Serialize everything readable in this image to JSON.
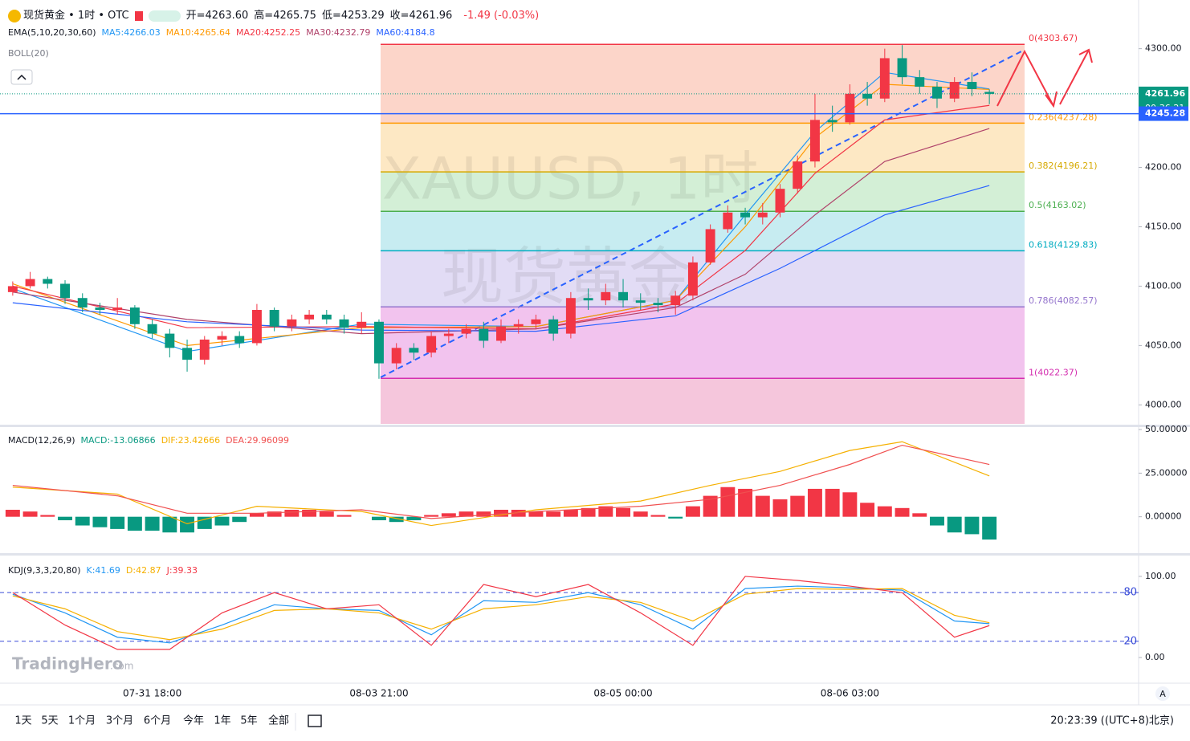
{
  "header": {
    "title": "现货黄金 • 1时 • OTC",
    "ohlc": [
      "开=4263.60",
      "高=4265.75",
      "低=4253.29",
      "收=4261.96"
    ],
    "change": "-1.49 (-0.03%)",
    "boll": "BOLL(20)",
    "logo": "TradingHero",
    "logo_suffix": ".com",
    "watermark_1": "XAUUSD, 1时",
    "watermark_2": "现货黄金"
  },
  "toolbar": {
    "ranges": [
      "1天",
      "5天",
      "1个月",
      "3个月",
      "6个月",
      "今年",
      "1年",
      "5年",
      "全部"
    ],
    "clock": "20:23:39 ((UTC+8)北京)",
    "auto": "A"
  },
  "chart_data": [
    {
      "type": "candlestick",
      "legend_title": "EMA(5,10,20,30,60)",
      "up_color": "#f23645",
      "down_color": "#089981",
      "categories": [
        null,
        null,
        null,
        null,
        null,
        null,
        null,
        null,
        "07-31 18:00",
        null,
        null,
        null,
        null,
        null,
        null,
        null,
        null,
        null,
        null,
        null,
        null,
        "08-03 21:00",
        null,
        null,
        null,
        null,
        null,
        null,
        null,
        null,
        null,
        null,
        null,
        null,
        null,
        "08-05 00:00",
        null,
        null,
        null,
        null,
        null,
        null,
        null,
        null,
        null,
        null,
        null,
        null,
        "08-06 03:00",
        null,
        null,
        null,
        null,
        null,
        null,
        null,
        null
      ],
      "open": [
        4095,
        4100,
        4106,
        4102,
        4090,
        4082,
        4080,
        4082,
        4068,
        4060,
        4048,
        4038,
        4055,
        4058,
        4052,
        4080,
        4066,
        4072,
        4076,
        4072,
        4065,
        4070,
        4035,
        4048,
        4044,
        4058,
        4060,
        4064,
        4054,
        4066,
        4068,
        4072,
        4060,
        4090,
        4088,
        4095,
        4088,
        4086,
        4084,
        4092,
        4120,
        4148,
        4162,
        4158,
        4162,
        4182,
        4205,
        4240,
        4238,
        4262,
        4258,
        4292,
        4276,
        4268,
        4258,
        4272,
        4263.6
      ],
      "high": [
        4104,
        4112,
        4108,
        4105,
        4094,
        4086,
        4090,
        4084,
        4072,
        4064,
        4055,
        4058,
        4062,
        4062,
        4085,
        4082,
        4076,
        4080,
        4080,
        4076,
        4078,
        4072,
        4052,
        4052,
        4062,
        4064,
        4068,
        4070,
        4072,
        4072,
        4076,
        4075,
        4095,
        4098,
        4102,
        4106,
        4094,
        4090,
        4096,
        4125,
        4152,
        4168,
        4166,
        4170,
        4186,
        4210,
        4262,
        4252,
        4270,
        4272,
        4300,
        4303,
        4282,
        4272,
        4276,
        4280,
        4265.75
      ],
      "low": [
        4092,
        4098,
        4098,
        4085,
        4078,
        4076,
        4076,
        4064,
        4056,
        4040,
        4028,
        4034,
        4050,
        4048,
        4050,
        4062,
        4062,
        4068,
        4068,
        4060,
        4060,
        4022,
        4030,
        4038,
        4040,
        4052,
        4056,
        4048,
        4052,
        4060,
        4064,
        4054,
        4056,
        4080,
        4084,
        4082,
        4080,
        4078,
        4076,
        4088,
        4118,
        4145,
        4152,
        4152,
        4158,
        4178,
        4200,
        4230,
        4236,
        4252,
        4255,
        4270,
        4262,
        4250,
        4255,
        4260,
        4253.29
      ],
      "close": [
        4100,
        4106,
        4102,
        4090,
        4082,
        4080,
        4082,
        4068,
        4060,
        4048,
        4038,
        4055,
        4058,
        4052,
        4080,
        4066,
        4072,
        4076,
        4072,
        4065,
        4070,
        4035,
        4048,
        4044,
        4058,
        4060,
        4064,
        4054,
        4066,
        4068,
        4072,
        4060,
        4090,
        4088,
        4095,
        4088,
        4086,
        4084,
        4092,
        4120,
        4148,
        4162,
        4158,
        4162,
        4182,
        4205,
        4240,
        4238,
        4262,
        4258,
        4292,
        4276,
        4268,
        4258,
        4272,
        4266,
        4261.96
      ],
      "series": [
        {
          "name": "MA5:4266.03",
          "color": "#2196f3",
          "x": [
            0,
            10,
            20,
            30,
            38,
            42,
            46,
            50,
            56
          ],
          "values": [
            4098,
            4045,
            4068,
            4066,
            4088,
            4160,
            4230,
            4280,
            4266.03
          ]
        },
        {
          "name": "MA10:4265.64",
          "color": "#ff9800",
          "x": [
            0,
            10,
            20,
            30,
            38,
            42,
            46,
            50,
            56
          ],
          "values": [
            4102,
            4050,
            4065,
            4066,
            4088,
            4150,
            4225,
            4270,
            4265.64
          ]
        },
        {
          "name": "MA20:4252.25",
          "color": "#f23645",
          "x": [
            0,
            10,
            20,
            30,
            38,
            42,
            46,
            50,
            56
          ],
          "values": [
            4100,
            4065,
            4066,
            4064,
            4085,
            4130,
            4195,
            4240,
            4252.25
          ]
        },
        {
          "name": "MA30:4232.79",
          "color": "#b0426a",
          "x": [
            0,
            10,
            20,
            30,
            38,
            42,
            46,
            50,
            56
          ],
          "values": [
            4095,
            4072,
            4060,
            4064,
            4082,
            4110,
            4160,
            4205,
            4232.79
          ]
        },
        {
          "name": "MA60:4184.8",
          "color": "#2962ff",
          "x": [
            0,
            10,
            20,
            30,
            38,
            44,
            50,
            56
          ],
          "values": [
            4086,
            4070,
            4063,
            4062,
            4075,
            4115,
            4160,
            4184.8
          ]
        }
      ],
      "ylim": [
        3984,
        4341
      ],
      "yticks": [
        {
          "value": 4300,
          "label": "4300.00"
        },
        {
          "value": 4200,
          "label": "4200.00"
        },
        {
          "value": 4150,
          "label": "4150.00"
        },
        {
          "value": 4100,
          "label": "4100.00"
        },
        {
          "value": 4050,
          "label": "4050.00"
        },
        {
          "value": 4000,
          "label": "4000.00"
        }
      ],
      "fib": [
        {
          "value": 4303.67,
          "label": "0(4303.67)",
          "color": "#f23645",
          "fill": "#fcd5c9"
        },
        {
          "value": 4237.28,
          "label": "0.236(4237.28)",
          "color": "#ff9800",
          "fill": "#fde8c4"
        },
        {
          "value": 4196.21,
          "label": "0.382(4196.21)",
          "color": "#d6a900",
          "fill": "#d3efd6"
        },
        {
          "value": 4163.02,
          "label": "0.5(4163.02)",
          "color": "#4caf50",
          "fill": "#c7ecf1"
        },
        {
          "value": 4129.83,
          "label": "0.618(4129.83)",
          "color": "#00acc1",
          "fill": "#e2dcf5"
        },
        {
          "value": 4082.57,
          "label": "0.786(4082.57)",
          "color": "#9575cd",
          "fill": "#f2c3ee"
        },
        {
          "value": 4022.37,
          "label": "1(4022.37)",
          "color": "#d42fb0",
          "fill": "#f5c6dc"
        }
      ],
      "last_price": 4261.96,
      "countdown": "00:36:21",
      "line_price": 4245.28
    },
    {
      "type": "macd",
      "title": "MACD(12,26,9)",
      "name": "MACD:-13.06866",
      "name_color": "#089981",
      "up_color": "#f23645",
      "down_color": "#089981",
      "values": [
        4,
        3,
        1,
        -2,
        -5,
        -6,
        -7,
        -8,
        -8,
        -9,
        -9,
        -7,
        -5,
        -3,
        2,
        3,
        4,
        4,
        3,
        1,
        0,
        -2,
        -3,
        -2,
        1,
        2,
        3,
        3,
        4,
        4,
        3,
        3,
        4,
        5,
        6,
        5,
        3,
        1,
        -1,
        6,
        12,
        17,
        16,
        12,
        10,
        12,
        16,
        16,
        14,
        8,
        6,
        5,
        2,
        -5,
        -9,
        -10,
        -13.06866
      ],
      "series": [
        {
          "name": "DIF:23.42666",
          "color": "#f5b000",
          "x": [
            0,
            6,
            10,
            14,
            20,
            24,
            30,
            36,
            40,
            44,
            48,
            51,
            56
          ],
          "values": [
            17,
            13,
            -4,
            6,
            3,
            -5,
            4,
            9,
            18,
            26,
            38,
            43,
            23.43
          ]
        },
        {
          "name": "DEA:29.96099",
          "color": "#f05050",
          "x": [
            0,
            6,
            10,
            14,
            20,
            24,
            30,
            36,
            40,
            44,
            48,
            51,
            56
          ],
          "values": [
            18,
            12,
            2,
            2,
            4,
            -1,
            3,
            6,
            10,
            18,
            30,
            41,
            29.96
          ]
        }
      ],
      "ylim": [
        -20.4,
        51.4
      ],
      "yticks": [
        {
          "value": 50,
          "label": "50.00000"
        },
        {
          "value": 25,
          "label": "25.00000"
        },
        {
          "value": 0,
          "label": "0.00000"
        }
      ]
    },
    {
      "type": "kdj",
      "title": "KDJ(9,3,3,20,80)",
      "series": [
        {
          "name": "K:41.69",
          "color": "#2196f3",
          "x": [
            0,
            3,
            6,
            9,
            12,
            15,
            18,
            21,
            24,
            27,
            30,
            33,
            36,
            39,
            42,
            45,
            48,
            51,
            54,
            56
          ],
          "values": [
            78,
            55,
            25,
            18,
            40,
            65,
            60,
            58,
            28,
            70,
            68,
            80,
            65,
            35,
            85,
            88,
            86,
            83,
            45,
            41.69
          ]
        },
        {
          "name": "D:42.87",
          "color": "#f5b000",
          "x": [
            0,
            3,
            6,
            9,
            12,
            15,
            18,
            21,
            24,
            27,
            30,
            33,
            36,
            39,
            42,
            45,
            48,
            51,
            54,
            56
          ],
          "values": [
            76,
            60,
            32,
            22,
            35,
            58,
            60,
            55,
            35,
            60,
            65,
            75,
            68,
            45,
            78,
            85,
            84,
            85,
            52,
            42.87
          ]
        },
        {
          "name": "J:39.33",
          "color": "#f23645",
          "x": [
            0,
            3,
            6,
            9,
            12,
            15,
            18,
            21,
            24,
            27,
            30,
            33,
            36,
            39,
            42,
            45,
            48,
            51,
            54,
            56
          ],
          "values": [
            80,
            40,
            10,
            10,
            55,
            80,
            60,
            65,
            15,
            90,
            75,
            90,
            55,
            15,
            100,
            95,
            88,
            80,
            25,
            39.33
          ]
        }
      ],
      "ylim": [
        -30.7,
        125.7
      ],
      "yticks": [
        {
          "value": 100,
          "label": "100.00"
        },
        {
          "value": 0,
          "label": "0.00"
        }
      ],
      "ref_lines": [
        80,
        20
      ],
      "ref_color": "#3a4cd8"
    }
  ]
}
